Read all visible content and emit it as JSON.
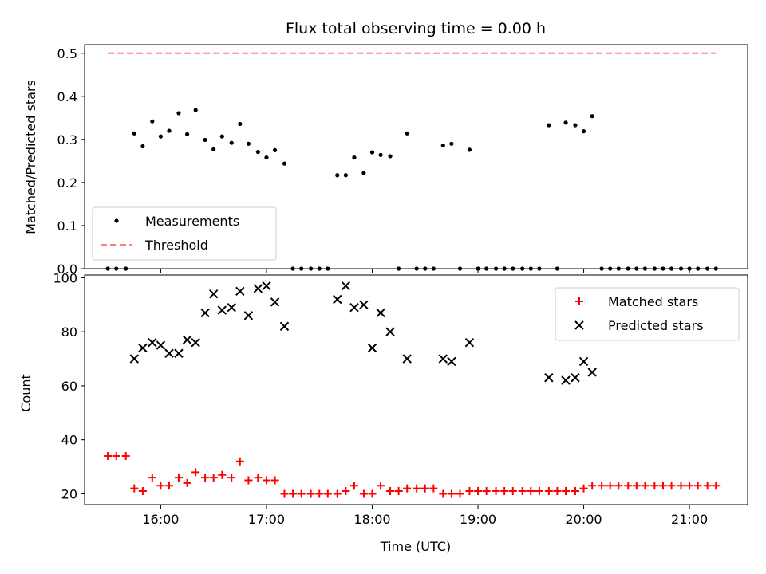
{
  "chart_data": [
    {
      "type": "scatter",
      "title": "Flux total observing time = 0.00 h",
      "xlabel": "",
      "ylabel": "Matched/Predicted stars",
      "ylim": [
        0.0,
        0.52
      ],
      "yticks": [
        "0.0",
        "0.1",
        "0.2",
        "0.3",
        "0.4",
        "0.5"
      ],
      "x_unit": "hours UTC",
      "xlim": [
        15.28,
        21.55
      ],
      "legend_position": "lower-left",
      "grid": false,
      "series": [
        {
          "name": "Measurements",
          "style": "dot",
          "color": "#000000",
          "points": [
            [
              15.5,
              0.0
            ],
            [
              15.58,
              0.0
            ],
            [
              15.67,
              0.0
            ],
            [
              15.75,
              0.314
            ],
            [
              15.83,
              0.284
            ],
            [
              15.92,
              0.342
            ],
            [
              16.0,
              0.307
            ],
            [
              16.08,
              0.32
            ],
            [
              16.17,
              0.361
            ],
            [
              16.25,
              0.312
            ],
            [
              16.33,
              0.368
            ],
            [
              16.42,
              0.299
            ],
            [
              16.5,
              0.277
            ],
            [
              16.58,
              0.307
            ],
            [
              16.67,
              0.292
            ],
            [
              16.75,
              0.336
            ],
            [
              16.83,
              0.29
            ],
            [
              16.92,
              0.271
            ],
            [
              17.0,
              0.258
            ],
            [
              17.08,
              0.275
            ],
            [
              17.17,
              0.244
            ],
            [
              17.25,
              0.0
            ],
            [
              17.33,
              0.0
            ],
            [
              17.42,
              0.0
            ],
            [
              17.5,
              0.0
            ],
            [
              17.58,
              0.0
            ],
            [
              17.67,
              0.217
            ],
            [
              17.75,
              0.217
            ],
            [
              17.83,
              0.258
            ],
            [
              17.92,
              0.222
            ],
            [
              18.0,
              0.27
            ],
            [
              18.08,
              0.264
            ],
            [
              18.17,
              0.261
            ],
            [
              18.25,
              0.0
            ],
            [
              18.33,
              0.314
            ],
            [
              18.42,
              0.0
            ],
            [
              18.5,
              0.0
            ],
            [
              18.58,
              0.0
            ],
            [
              18.67,
              0.286
            ],
            [
              18.75,
              0.29
            ],
            [
              18.83,
              0.0
            ],
            [
              18.92,
              0.276
            ],
            [
              19.0,
              0.0
            ],
            [
              19.08,
              0.0
            ],
            [
              19.17,
              0.0
            ],
            [
              19.25,
              0.0
            ],
            [
              19.33,
              0.0
            ],
            [
              19.42,
              0.0
            ],
            [
              19.5,
              0.0
            ],
            [
              19.58,
              0.0
            ],
            [
              19.67,
              0.333
            ],
            [
              19.75,
              0.0
            ],
            [
              19.83,
              0.339
            ],
            [
              19.92,
              0.333
            ],
            [
              20.0,
              0.319
            ],
            [
              20.08,
              0.354
            ],
            [
              20.17,
              0.0
            ],
            [
              20.25,
              0.0
            ],
            [
              20.33,
              0.0
            ],
            [
              20.42,
              0.0
            ],
            [
              20.5,
              0.0
            ],
            [
              20.58,
              0.0
            ],
            [
              20.67,
              0.0
            ],
            [
              20.75,
              0.0
            ],
            [
              20.83,
              0.0
            ],
            [
              20.92,
              0.0
            ],
            [
              21.0,
              0.0
            ],
            [
              21.08,
              0.0
            ],
            [
              21.17,
              0.0
            ],
            [
              21.25,
              0.0
            ]
          ]
        },
        {
          "name": "Threshold",
          "style": "dashed-line",
          "color": "#ff7f7f",
          "points": [
            [
              15.5,
              0.5
            ],
            [
              21.25,
              0.5
            ]
          ]
        }
      ]
    },
    {
      "type": "scatter",
      "title": "",
      "xlabel": "Time (UTC)",
      "ylabel": "Count",
      "ylim": [
        16,
        101
      ],
      "yticks": [
        "20",
        "40",
        "60",
        "80",
        "100"
      ],
      "xticks": [
        "16:00",
        "17:00",
        "18:00",
        "19:00",
        "20:00",
        "21:00"
      ],
      "x_unit": "hours UTC",
      "xlim": [
        15.28,
        21.55
      ],
      "legend_position": "upper-right",
      "grid": false,
      "series": [
        {
          "name": "Matched stars",
          "style": "plus",
          "color": "#ff0000",
          "points": [
            [
              15.5,
              34
            ],
            [
              15.58,
              34
            ],
            [
              15.67,
              34
            ],
            [
              15.75,
              22
            ],
            [
              15.83,
              21
            ],
            [
              15.92,
              26
            ],
            [
              16.0,
              23
            ],
            [
              16.08,
              23
            ],
            [
              16.17,
              26
            ],
            [
              16.25,
              24
            ],
            [
              16.33,
              28
            ],
            [
              16.42,
              26
            ],
            [
              16.5,
              26
            ],
            [
              16.58,
              27
            ],
            [
              16.67,
              26
            ],
            [
              16.75,
              32
            ],
            [
              16.83,
              25
            ],
            [
              16.92,
              26
            ],
            [
              17.0,
              25
            ],
            [
              17.08,
              25
            ],
            [
              17.17,
              20
            ],
            [
              17.25,
              20
            ],
            [
              17.33,
              20
            ],
            [
              17.42,
              20
            ],
            [
              17.5,
              20
            ],
            [
              17.58,
              20
            ],
            [
              17.67,
              20
            ],
            [
              17.75,
              21
            ],
            [
              17.83,
              23
            ],
            [
              17.92,
              20
            ],
            [
              18.0,
              20
            ],
            [
              18.08,
              23
            ],
            [
              18.17,
              21
            ],
            [
              18.25,
              21
            ],
            [
              18.33,
              22
            ],
            [
              18.42,
              22
            ],
            [
              18.5,
              22
            ],
            [
              18.58,
              22
            ],
            [
              18.67,
              20
            ],
            [
              18.75,
              20
            ],
            [
              18.83,
              20
            ],
            [
              18.92,
              21
            ],
            [
              19.0,
              21
            ],
            [
              19.08,
              21
            ],
            [
              19.17,
              21
            ],
            [
              19.25,
              21
            ],
            [
              19.33,
              21
            ],
            [
              19.42,
              21
            ],
            [
              19.5,
              21
            ],
            [
              19.58,
              21
            ],
            [
              19.67,
              21
            ],
            [
              19.75,
              21
            ],
            [
              19.83,
              21
            ],
            [
              19.92,
              21
            ],
            [
              20.0,
              22
            ],
            [
              20.08,
              23
            ],
            [
              20.17,
              23
            ],
            [
              20.25,
              23
            ],
            [
              20.33,
              23
            ],
            [
              20.42,
              23
            ],
            [
              20.5,
              23
            ],
            [
              20.58,
              23
            ],
            [
              20.67,
              23
            ],
            [
              20.75,
              23
            ],
            [
              20.83,
              23
            ],
            [
              20.92,
              23
            ],
            [
              21.0,
              23
            ],
            [
              21.08,
              23
            ],
            [
              21.17,
              23
            ],
            [
              21.25,
              23
            ]
          ]
        },
        {
          "name": "Predicted stars",
          "style": "x",
          "color": "#000000",
          "points": [
            [
              15.75,
              70
            ],
            [
              15.83,
              74
            ],
            [
              15.92,
              76
            ],
            [
              16.0,
              75
            ],
            [
              16.08,
              72
            ],
            [
              16.17,
              72
            ],
            [
              16.25,
              77
            ],
            [
              16.33,
              76
            ],
            [
              16.42,
              87
            ],
            [
              16.5,
              94
            ],
            [
              16.58,
              88
            ],
            [
              16.67,
              89
            ],
            [
              16.75,
              95
            ],
            [
              16.83,
              86
            ],
            [
              16.92,
              96
            ],
            [
              17.0,
              97
            ],
            [
              17.08,
              91
            ],
            [
              17.17,
              82
            ],
            [
              17.67,
              92
            ],
            [
              17.75,
              97
            ],
            [
              17.83,
              89
            ],
            [
              17.92,
              90
            ],
            [
              18.0,
              74
            ],
            [
              18.08,
              87
            ],
            [
              18.17,
              80
            ],
            [
              18.33,
              70
            ],
            [
              18.67,
              70
            ],
            [
              18.75,
              69
            ],
            [
              18.92,
              76
            ],
            [
              19.67,
              63
            ],
            [
              19.83,
              62
            ],
            [
              19.92,
              63
            ],
            [
              20.0,
              69
            ],
            [
              20.08,
              65
            ]
          ]
        }
      ]
    }
  ]
}
